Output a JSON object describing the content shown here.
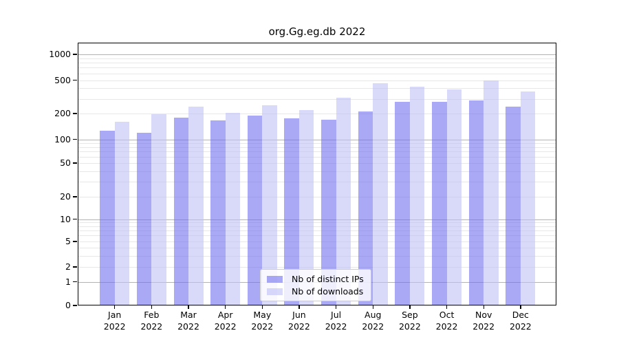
{
  "chart_data": {
    "type": "bar",
    "title": "org.Gg.eg.db 2022",
    "x_axis": {
      "months": [
        "Jan",
        "Feb",
        "Mar",
        "Apr",
        "May",
        "Jun",
        "Jul",
        "Aug",
        "Sep",
        "Oct",
        "Nov",
        "Dec"
      ],
      "year": "2022"
    },
    "y_axis": {
      "scale": "symlog",
      "ticks": [
        0,
        1,
        2,
        5,
        10,
        20,
        50,
        100,
        200,
        500,
        1000
      ],
      "ylim": [
        0,
        1400
      ],
      "grid": true
    },
    "series": [
      {
        "name": "Nb of distinct IPs",
        "color": "#a9a9f5",
        "fill": "rgba(112,112,239,0.6)",
        "values": [
          125,
          120,
          180,
          165,
          190,
          175,
          170,
          210,
          275,
          275,
          285,
          240
        ]
      },
      {
        "name": "Nb of downloads",
        "color": "#d9d9f7",
        "fill": "rgba(192,192,247,0.6)",
        "values": [
          160,
          195,
          240,
          205,
          250,
          220,
          310,
          460,
          420,
          390,
          495,
          365
        ]
      }
    ],
    "legend": {
      "position": "lower center",
      "entries": [
        "Nb of distinct IPs",
        "Nb of downloads"
      ]
    }
  }
}
